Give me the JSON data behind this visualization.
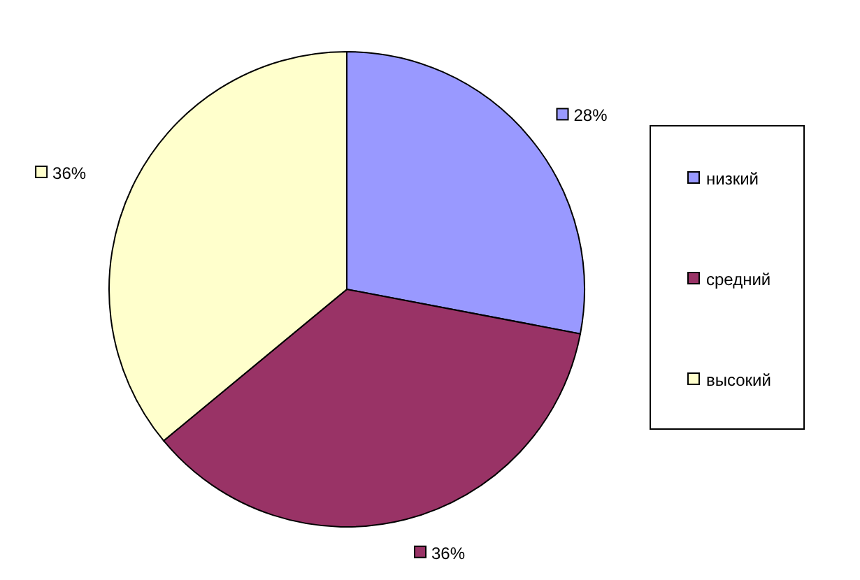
{
  "chart_data": {
    "type": "pie",
    "categories": [
      "низкий",
      "средний",
      "высокий"
    ],
    "values": [
      28,
      36,
      36
    ],
    "colors": [
      "#9999ff",
      "#993366",
      "#ffffcc"
    ],
    "value_labels": [
      "28%",
      "36%",
      "36%"
    ],
    "legend": "right"
  }
}
